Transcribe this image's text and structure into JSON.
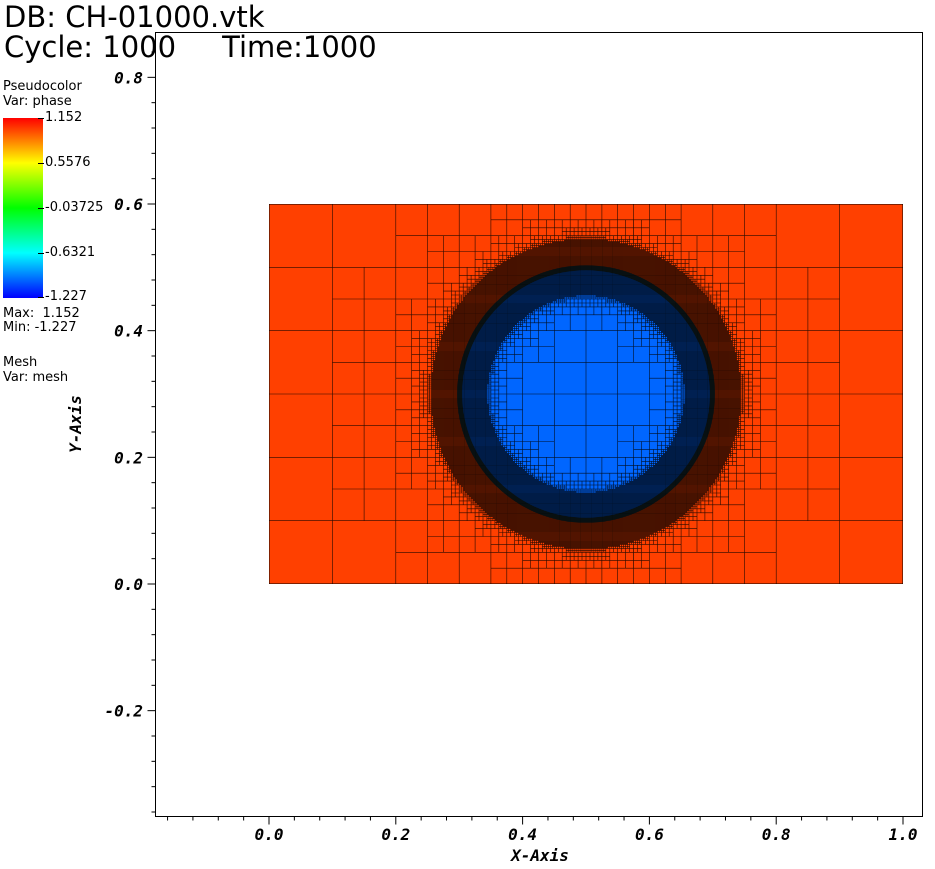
{
  "header": {
    "db_label": "DB: CH-01000.vtk",
    "cycle_label": "Cycle: 1000",
    "time_label": "Time:1000"
  },
  "legend": {
    "plot_name": "Pseudocolor",
    "var_label": "Var: phase",
    "colorbar_labels": [
      "1.152",
      "0.5576",
      "-0.03725",
      "-0.6321",
      "-1.227"
    ],
    "max_label": "Max:  1.152",
    "min_label": "Min: -1.227",
    "mesh_name": "Mesh",
    "mesh_var_label": "Var: mesh"
  },
  "colors": {
    "outer_phase": "#ff4000",
    "inner_phase": "#0066ff",
    "mesh_line": "#000000"
  },
  "chart_data": {
    "type": "heatmap",
    "xlabel": "X-Axis",
    "ylabel": "Y-Axis",
    "xlim": [
      -0.17,
      1.03
    ],
    "ylim": [
      -0.36,
      0.88
    ],
    "xticks": [
      0.0,
      0.2,
      0.4,
      0.6,
      0.8,
      1.0
    ],
    "xtick_labels": [
      "0.0",
      "0.2",
      "0.4",
      "0.6",
      "0.8",
      "1.0"
    ],
    "yticks": [
      -0.2,
      0.0,
      0.2,
      0.4,
      0.6,
      0.8
    ],
    "ytick_labels": [
      "-0.2",
      "0.0",
      "0.2",
      "0.4",
      "0.6",
      "0.8"
    ],
    "domain": {
      "x": [
        0.0,
        1.0
      ],
      "y": [
        0.0,
        0.6
      ]
    },
    "circle": {
      "center": [
        0.5,
        0.3
      ],
      "radius": 0.2
    },
    "phase_range": [
      -1.227,
      1.152
    ],
    "mesh": "adaptive quadtree refined at interface",
    "grid": false
  }
}
